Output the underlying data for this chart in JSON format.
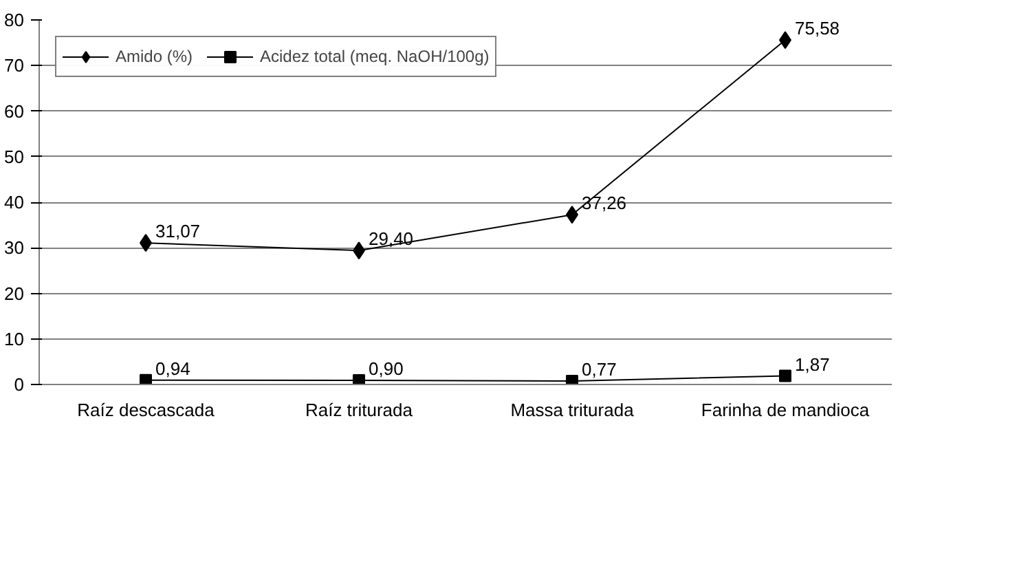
{
  "chart_data": {
    "type": "line",
    "categories": [
      "Raíz descascada",
      "Raíz triturada",
      "Massa triturada",
      "Farinha de mandioca"
    ],
    "series": [
      {
        "name": "Amido (%)",
        "color": "#000000",
        "marker": "diamond",
        "values": [
          31.07,
          29.4,
          37.26,
          75.58
        ],
        "value_labels": [
          "31,07",
          "29,40",
          "37,26",
          "75,58"
        ]
      },
      {
        "name": "Acidez total (meq. NaOH/100g)",
        "color": "#000000",
        "marker": "square",
        "values": [
          0.94,
          0.9,
          0.77,
          1.87
        ],
        "value_labels": [
          "0,94",
          "0,90",
          "0,77",
          "1,87"
        ]
      }
    ],
    "ylim": [
      0,
      80
    ],
    "yticks": [
      0,
      10,
      20,
      30,
      40,
      50,
      60,
      70,
      80
    ],
    "grid": "y",
    "legend": "top left",
    "line_style": "solid"
  }
}
